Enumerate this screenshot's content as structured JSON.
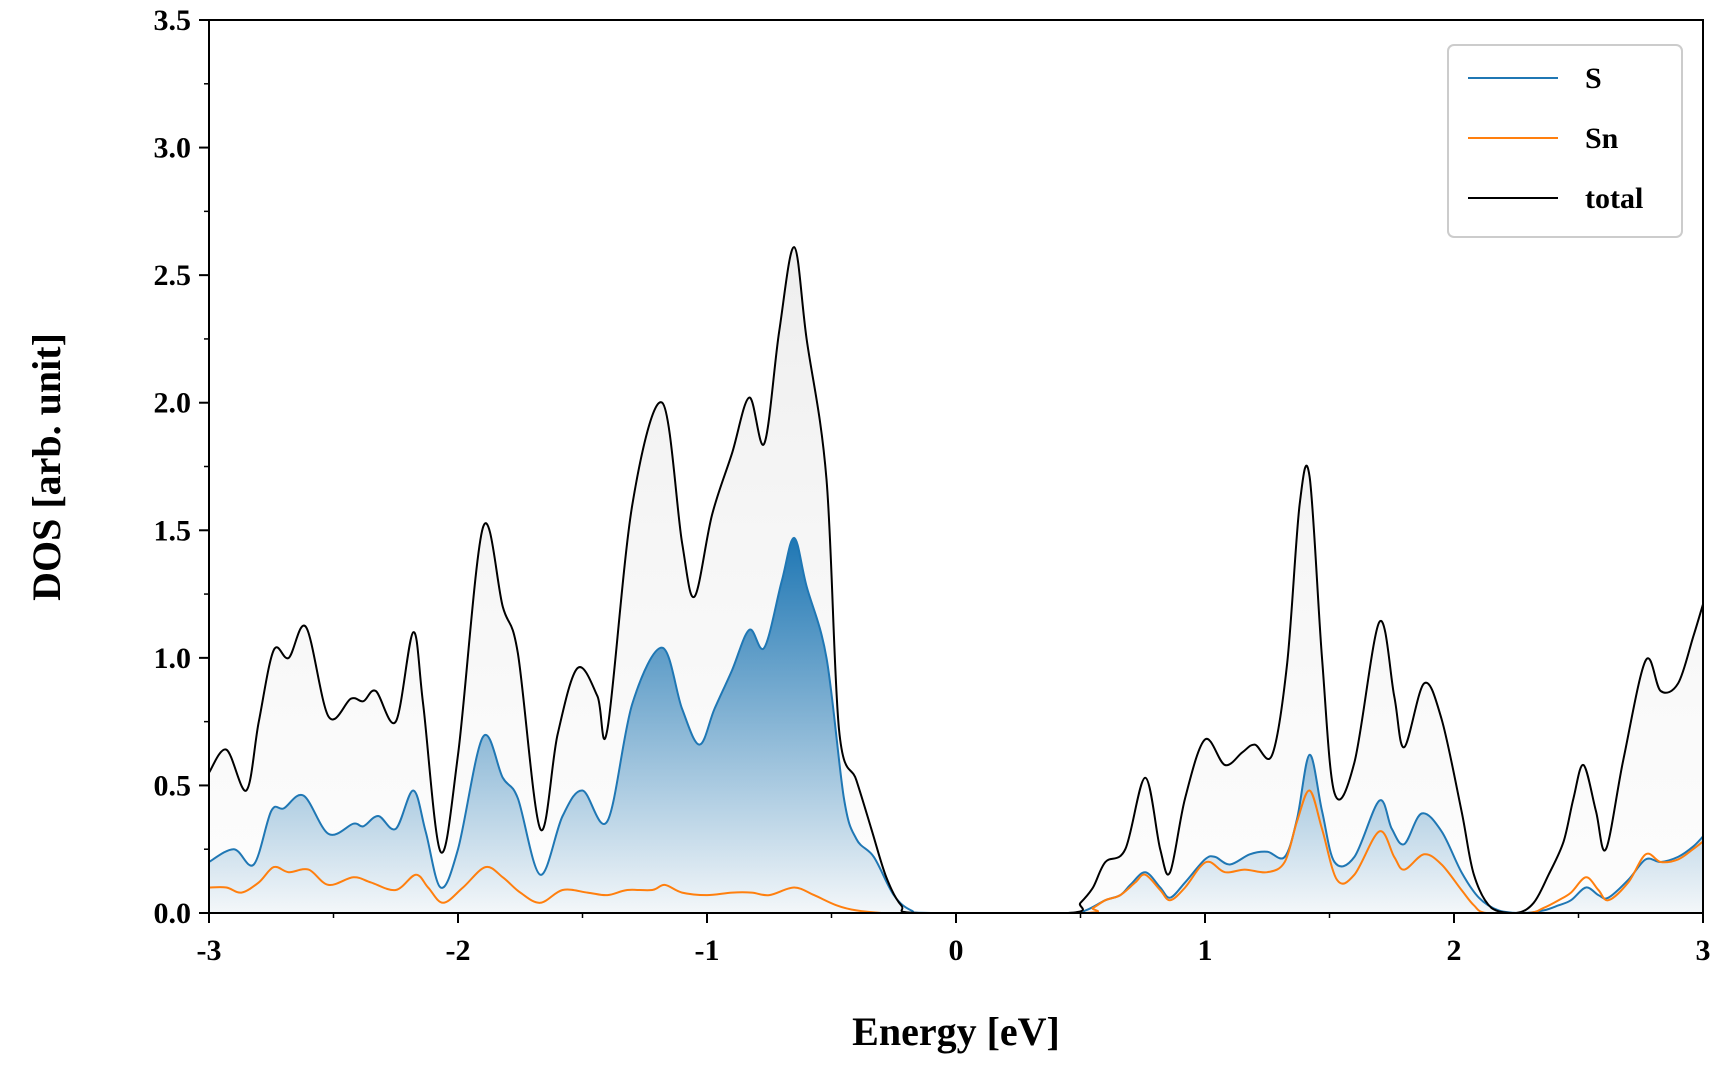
{
  "chart_data": {
    "type": "line",
    "title": "",
    "xlabel": "Energy [eV]",
    "ylabel": "DOS [arb. unit]",
    "xlim": [
      -3,
      3
    ],
    "ylim": [
      0,
      3.5
    ],
    "grid": false,
    "legend_position": "top-right",
    "x_ticks": [
      "-3",
      "-2",
      "-1",
      "0",
      "1",
      "2",
      "3"
    ],
    "x_tick_values": [
      -3,
      -2,
      -1,
      0,
      1,
      2,
      3
    ],
    "y_ticks": [
      "0.0",
      "0.5",
      "1.0",
      "1.5",
      "2.0",
      "2.5",
      "3.0",
      "3.5"
    ],
    "y_tick_values": [
      0,
      0.5,
      1.0,
      1.5,
      2.0,
      2.5,
      3.0,
      3.5
    ],
    "series": [
      {
        "name": "S",
        "color": "#1f77b4",
        "fill": "gradient",
        "points": [
          [
            -3.0,
            0.2
          ],
          [
            -2.9,
            0.25
          ],
          [
            -2.82,
            0.19
          ],
          [
            -2.75,
            0.4
          ],
          [
            -2.7,
            0.41
          ],
          [
            -2.62,
            0.46
          ],
          [
            -2.52,
            0.31
          ],
          [
            -2.42,
            0.35
          ],
          [
            -2.38,
            0.34
          ],
          [
            -2.32,
            0.38
          ],
          [
            -2.25,
            0.33
          ],
          [
            -2.18,
            0.48
          ],
          [
            -2.13,
            0.32
          ],
          [
            -2.07,
            0.1
          ],
          [
            -2.0,
            0.25
          ],
          [
            -1.9,
            0.69
          ],
          [
            -1.82,
            0.53
          ],
          [
            -1.76,
            0.45
          ],
          [
            -1.67,
            0.15
          ],
          [
            -1.58,
            0.38
          ],
          [
            -1.5,
            0.48
          ],
          [
            -1.4,
            0.36
          ],
          [
            -1.3,
            0.82
          ],
          [
            -1.18,
            1.04
          ],
          [
            -1.1,
            0.8
          ],
          [
            -1.03,
            0.66
          ],
          [
            -0.97,
            0.8
          ],
          [
            -0.9,
            0.95
          ],
          [
            -0.83,
            1.11
          ],
          [
            -0.77,
            1.04
          ],
          [
            -0.7,
            1.3
          ],
          [
            -0.65,
            1.47
          ],
          [
            -0.6,
            1.28
          ],
          [
            -0.52,
            1.0
          ],
          [
            -0.45,
            0.45
          ],
          [
            -0.4,
            0.29
          ],
          [
            -0.33,
            0.22
          ],
          [
            -0.25,
            0.07
          ],
          [
            -0.18,
            0.01
          ],
          [
            -0.1,
            0.0
          ],
          [
            0.45,
            0.0
          ],
          [
            0.52,
            0.01
          ],
          [
            0.6,
            0.05
          ],
          [
            0.66,
            0.07
          ],
          [
            0.7,
            0.11
          ],
          [
            0.76,
            0.16
          ],
          [
            0.82,
            0.1
          ],
          [
            0.86,
            0.06
          ],
          [
            0.92,
            0.12
          ],
          [
            1.0,
            0.21
          ],
          [
            1.04,
            0.22
          ],
          [
            1.1,
            0.19
          ],
          [
            1.18,
            0.23
          ],
          [
            1.25,
            0.24
          ],
          [
            1.32,
            0.22
          ],
          [
            1.37,
            0.37
          ],
          [
            1.42,
            0.62
          ],
          [
            1.47,
            0.4
          ],
          [
            1.52,
            0.2
          ],
          [
            1.6,
            0.22
          ],
          [
            1.7,
            0.44
          ],
          [
            1.75,
            0.33
          ],
          [
            1.8,
            0.27
          ],
          [
            1.87,
            0.39
          ],
          [
            1.95,
            0.32
          ],
          [
            2.03,
            0.16
          ],
          [
            2.1,
            0.06
          ],
          [
            2.18,
            0.01
          ],
          [
            2.28,
            0.0
          ],
          [
            2.36,
            0.01
          ],
          [
            2.42,
            0.03
          ],
          [
            2.47,
            0.05
          ],
          [
            2.53,
            0.1
          ],
          [
            2.58,
            0.07
          ],
          [
            2.62,
            0.06
          ],
          [
            2.7,
            0.13
          ],
          [
            2.77,
            0.21
          ],
          [
            2.83,
            0.2
          ],
          [
            2.9,
            0.22
          ],
          [
            2.96,
            0.26
          ],
          [
            3.0,
            0.3
          ]
        ]
      },
      {
        "name": "Sn",
        "color": "#ff7f0e",
        "points": [
          [
            -3.0,
            0.1
          ],
          [
            -2.93,
            0.1
          ],
          [
            -2.87,
            0.08
          ],
          [
            -2.8,
            0.12
          ],
          [
            -2.74,
            0.18
          ],
          [
            -2.68,
            0.16
          ],
          [
            -2.6,
            0.17
          ],
          [
            -2.52,
            0.11
          ],
          [
            -2.42,
            0.14
          ],
          [
            -2.35,
            0.12
          ],
          [
            -2.25,
            0.09
          ],
          [
            -2.17,
            0.15
          ],
          [
            -2.12,
            0.1
          ],
          [
            -2.06,
            0.04
          ],
          [
            -1.98,
            0.1
          ],
          [
            -1.89,
            0.18
          ],
          [
            -1.82,
            0.14
          ],
          [
            -1.75,
            0.08
          ],
          [
            -1.67,
            0.04
          ],
          [
            -1.58,
            0.09
          ],
          [
            -1.48,
            0.08
          ],
          [
            -1.4,
            0.07
          ],
          [
            -1.32,
            0.09
          ],
          [
            -1.22,
            0.09
          ],
          [
            -1.17,
            0.11
          ],
          [
            -1.1,
            0.08
          ],
          [
            -1.0,
            0.07
          ],
          [
            -0.9,
            0.08
          ],
          [
            -0.82,
            0.08
          ],
          [
            -0.75,
            0.07
          ],
          [
            -0.65,
            0.1
          ],
          [
            -0.57,
            0.07
          ],
          [
            -0.48,
            0.03
          ],
          [
            -0.4,
            0.01
          ],
          [
            -0.3,
            0.0
          ],
          [
            -0.25,
            0.0
          ],
          [
            0.5,
            0.0
          ],
          [
            0.55,
            0.02
          ],
          [
            0.6,
            0.05
          ],
          [
            0.66,
            0.07
          ],
          [
            0.72,
            0.12
          ],
          [
            0.76,
            0.15
          ],
          [
            0.82,
            0.09
          ],
          [
            0.86,
            0.05
          ],
          [
            0.92,
            0.1
          ],
          [
            0.98,
            0.18
          ],
          [
            1.02,
            0.2
          ],
          [
            1.08,
            0.16
          ],
          [
            1.16,
            0.17
          ],
          [
            1.25,
            0.16
          ],
          [
            1.32,
            0.2
          ],
          [
            1.37,
            0.36
          ],
          [
            1.42,
            0.48
          ],
          [
            1.47,
            0.33
          ],
          [
            1.53,
            0.13
          ],
          [
            1.6,
            0.15
          ],
          [
            1.7,
            0.32
          ],
          [
            1.76,
            0.22
          ],
          [
            1.8,
            0.17
          ],
          [
            1.88,
            0.23
          ],
          [
            1.95,
            0.19
          ],
          [
            2.03,
            0.09
          ],
          [
            2.08,
            0.03
          ],
          [
            2.13,
            0.0
          ],
          [
            2.3,
            0.0
          ],
          [
            2.36,
            0.02
          ],
          [
            2.42,
            0.05
          ],
          [
            2.47,
            0.08
          ],
          [
            2.53,
            0.14
          ],
          [
            2.58,
            0.09
          ],
          [
            2.62,
            0.05
          ],
          [
            2.7,
            0.12
          ],
          [
            2.77,
            0.23
          ],
          [
            2.83,
            0.2
          ],
          [
            2.9,
            0.21
          ],
          [
            2.96,
            0.25
          ],
          [
            3.0,
            0.28
          ]
        ]
      },
      {
        "name": "total",
        "color": "#000000",
        "fill": "light",
        "points": [
          [
            -3.0,
            0.55
          ],
          [
            -2.93,
            0.64
          ],
          [
            -2.85,
            0.48
          ],
          [
            -2.8,
            0.75
          ],
          [
            -2.74,
            1.03
          ],
          [
            -2.68,
            1.0
          ],
          [
            -2.61,
            1.12
          ],
          [
            -2.52,
            0.77
          ],
          [
            -2.43,
            0.84
          ],
          [
            -2.38,
            0.83
          ],
          [
            -2.33,
            0.87
          ],
          [
            -2.25,
            0.75
          ],
          [
            -2.18,
            1.1
          ],
          [
            -2.14,
            0.82
          ],
          [
            -2.07,
            0.24
          ],
          [
            -2.0,
            0.62
          ],
          [
            -1.9,
            1.51
          ],
          [
            -1.82,
            1.2
          ],
          [
            -1.76,
            1.02
          ],
          [
            -1.67,
            0.33
          ],
          [
            -1.6,
            0.7
          ],
          [
            -1.52,
            0.96
          ],
          [
            -1.44,
            0.85
          ],
          [
            -1.4,
            0.72
          ],
          [
            -1.3,
            1.6
          ],
          [
            -1.18,
            2.0
          ],
          [
            -1.1,
            1.45
          ],
          [
            -1.05,
            1.24
          ],
          [
            -0.98,
            1.56
          ],
          [
            -0.9,
            1.8
          ],
          [
            -0.83,
            2.02
          ],
          [
            -0.77,
            1.84
          ],
          [
            -0.71,
            2.28
          ],
          [
            -0.65,
            2.61
          ],
          [
            -0.6,
            2.25
          ],
          [
            -0.52,
            1.7
          ],
          [
            -0.47,
            0.72
          ],
          [
            -0.4,
            0.52
          ],
          [
            -0.34,
            0.33
          ],
          [
            -0.28,
            0.14
          ],
          [
            -0.22,
            0.03
          ],
          [
            -0.15,
            0.0
          ],
          [
            0.45,
            0.0
          ],
          [
            0.5,
            0.04
          ],
          [
            0.55,
            0.1
          ],
          [
            0.6,
            0.2
          ],
          [
            0.68,
            0.25
          ],
          [
            0.76,
            0.53
          ],
          [
            0.82,
            0.25
          ],
          [
            0.86,
            0.16
          ],
          [
            0.92,
            0.45
          ],
          [
            1.0,
            0.68
          ],
          [
            1.08,
            0.58
          ],
          [
            1.15,
            0.63
          ],
          [
            1.2,
            0.66
          ],
          [
            1.27,
            0.62
          ],
          [
            1.33,
            0.98
          ],
          [
            1.38,
            1.6
          ],
          [
            1.42,
            1.71
          ],
          [
            1.47,
            1.0
          ],
          [
            1.52,
            0.47
          ],
          [
            1.6,
            0.59
          ],
          [
            1.7,
            1.14
          ],
          [
            1.76,
            0.85
          ],
          [
            1.8,
            0.65
          ],
          [
            1.88,
            0.9
          ],
          [
            1.95,
            0.76
          ],
          [
            2.03,
            0.4
          ],
          [
            2.08,
            0.15
          ],
          [
            2.15,
            0.02
          ],
          [
            2.25,
            0.0
          ],
          [
            2.32,
            0.04
          ],
          [
            2.38,
            0.15
          ],
          [
            2.44,
            0.28
          ],
          [
            2.48,
            0.45
          ],
          [
            2.52,
            0.58
          ],
          [
            2.57,
            0.4
          ],
          [
            2.61,
            0.25
          ],
          [
            2.68,
            0.6
          ],
          [
            2.77,
            0.99
          ],
          [
            2.83,
            0.87
          ],
          [
            2.9,
            0.9
          ],
          [
            2.96,
            1.08
          ],
          [
            3.0,
            1.21
          ]
        ]
      }
    ]
  }
}
